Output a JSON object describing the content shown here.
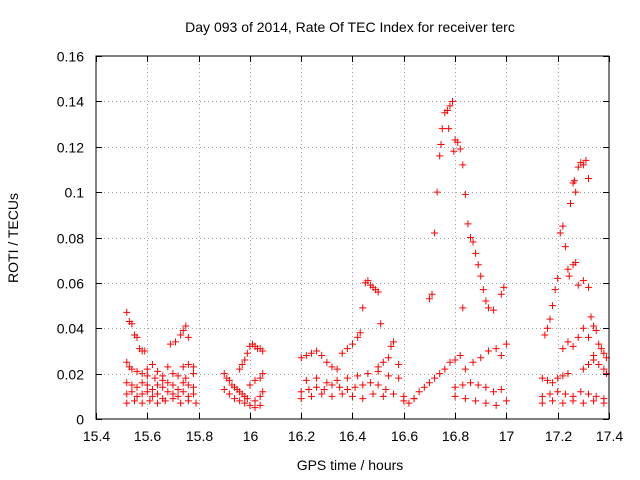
{
  "chart_data": {
    "type": "scatter",
    "title": "Day 093 of 2014, Rate Of TEC Index for receiver terc",
    "xlabel": "GPS time / hours",
    "ylabel": "ROTI / TECUs",
    "xlim": [
      15.4,
      17.4
    ],
    "ylim": [
      0,
      0.16
    ],
    "x_ticks": [
      15.4,
      15.6,
      15.8,
      16,
      16.2,
      16.4,
      16.6,
      16.8,
      17,
      17.2,
      17.4
    ],
    "x_tick_labels": [
      "15.4",
      "15.6",
      "15.8",
      "16",
      "16.2",
      "16.4",
      "16.6",
      "16.8",
      "17",
      "17.2",
      "17.4"
    ],
    "y_ticks": [
      0,
      0.02,
      0.04,
      0.06,
      0.08,
      0.1,
      0.12,
      0.14,
      0.16
    ],
    "y_tick_labels": [
      "0",
      "0.02",
      "0.04",
      "0.06",
      "0.08",
      "0.1",
      "0.12",
      "0.14",
      "0.16"
    ],
    "grid": true,
    "marker": "+",
    "series": [
      {
        "name": "ROTI",
        "color": "#ff0000",
        "points": [
          [
            15.52,
            0.047
          ],
          [
            15.53,
            0.043
          ],
          [
            15.54,
            0.042
          ],
          [
            15.55,
            0.037
          ],
          [
            15.56,
            0.036
          ],
          [
            15.57,
            0.031
          ],
          [
            15.58,
            0.03
          ],
          [
            15.59,
            0.03
          ],
          [
            15.52,
            0.025
          ],
          [
            15.53,
            0.023
          ],
          [
            15.54,
            0.022
          ],
          [
            15.56,
            0.021
          ],
          [
            15.58,
            0.02
          ],
          [
            15.6,
            0.022
          ],
          [
            15.62,
            0.024
          ],
          [
            15.64,
            0.021
          ],
          [
            15.66,
            0.019
          ],
          [
            15.68,
            0.023
          ],
          [
            15.52,
            0.016
          ],
          [
            15.54,
            0.015
          ],
          [
            15.56,
            0.014
          ],
          [
            15.58,
            0.016
          ],
          [
            15.6,
            0.015
          ],
          [
            15.62,
            0.013
          ],
          [
            15.64,
            0.015
          ],
          [
            15.66,
            0.014
          ],
          [
            15.68,
            0.016
          ],
          [
            15.7,
            0.015
          ],
          [
            15.72,
            0.013
          ],
          [
            15.74,
            0.016
          ],
          [
            15.76,
            0.015
          ],
          [
            15.78,
            0.014
          ],
          [
            15.52,
            0.011
          ],
          [
            15.54,
            0.012
          ],
          [
            15.56,
            0.01
          ],
          [
            15.58,
            0.011
          ],
          [
            15.6,
            0.012
          ],
          [
            15.62,
            0.01
          ],
          [
            15.64,
            0.011
          ],
          [
            15.66,
            0.009
          ],
          [
            15.68,
            0.012
          ],
          [
            15.7,
            0.011
          ],
          [
            15.72,
            0.01
          ],
          [
            15.74,
            0.012
          ],
          [
            15.76,
            0.01
          ],
          [
            15.78,
            0.011
          ],
          [
            15.52,
            0.007
          ],
          [
            15.55,
            0.008
          ],
          [
            15.58,
            0.007
          ],
          [
            15.61,
            0.008
          ],
          [
            15.64,
            0.007
          ],
          [
            15.67,
            0.008
          ],
          [
            15.7,
            0.009
          ],
          [
            15.73,
            0.007
          ],
          [
            15.76,
            0.008
          ],
          [
            15.79,
            0.007
          ],
          [
            15.6,
            0.019
          ],
          [
            15.63,
            0.018
          ],
          [
            15.66,
            0.017
          ],
          [
            15.7,
            0.02
          ],
          [
            15.72,
            0.019
          ],
          [
            15.75,
            0.018
          ],
          [
            15.78,
            0.02
          ],
          [
            15.69,
            0.033
          ],
          [
            15.71,
            0.034
          ],
          [
            15.73,
            0.037
          ],
          [
            15.74,
            0.039
          ],
          [
            15.75,
            0.041
          ],
          [
            15.76,
            0.036
          ],
          [
            15.74,
            0.023
          ],
          [
            15.76,
            0.024
          ],
          [
            15.78,
            0.023
          ],
          [
            15.9,
            0.02
          ],
          [
            15.91,
            0.018
          ],
          [
            15.92,
            0.017
          ],
          [
            15.93,
            0.015
          ],
          [
            15.94,
            0.014
          ],
          [
            15.95,
            0.013
          ],
          [
            15.96,
            0.012
          ],
          [
            15.97,
            0.011
          ],
          [
            15.98,
            0.01
          ],
          [
            15.99,
            0.009
          ],
          [
            15.9,
            0.013
          ],
          [
            15.92,
            0.011
          ],
          [
            15.94,
            0.009
          ],
          [
            15.96,
            0.008
          ],
          [
            15.98,
            0.007
          ],
          [
            16.0,
            0.006
          ],
          [
            16.02,
            0.008
          ],
          [
            16.04,
            0.01
          ],
          [
            16.05,
            0.012
          ],
          [
            15.96,
            0.022
          ],
          [
            15.97,
            0.024
          ],
          [
            15.98,
            0.026
          ],
          [
            15.99,
            0.029
          ],
          [
            16.0,
            0.032
          ],
          [
            16.01,
            0.033
          ],
          [
            16.02,
            0.032
          ],
          [
            16.03,
            0.031
          ],
          [
            16.04,
            0.031
          ],
          [
            16.05,
            0.03
          ],
          [
            16.0,
            0.015
          ],
          [
            16.02,
            0.017
          ],
          [
            16.04,
            0.018
          ],
          [
            16.05,
            0.02
          ],
          [
            16.02,
            0.005
          ],
          [
            16.04,
            0.006
          ],
          [
            16.2,
            0.027
          ],
          [
            16.22,
            0.028
          ],
          [
            16.24,
            0.029
          ],
          [
            16.26,
            0.03
          ],
          [
            16.28,
            0.028
          ],
          [
            16.3,
            0.025
          ],
          [
            16.32,
            0.023
          ],
          [
            16.34,
            0.022
          ],
          [
            16.2,
            0.012
          ],
          [
            16.23,
            0.013
          ],
          [
            16.26,
            0.014
          ],
          [
            16.29,
            0.013
          ],
          [
            16.32,
            0.015
          ],
          [
            16.35,
            0.014
          ],
          [
            16.38,
            0.013
          ],
          [
            16.41,
            0.014
          ],
          [
            16.44,
            0.015
          ],
          [
            16.47,
            0.016
          ],
          [
            16.5,
            0.015
          ],
          [
            16.53,
            0.013
          ],
          [
            16.2,
            0.009
          ],
          [
            16.24,
            0.01
          ],
          [
            16.28,
            0.011
          ],
          [
            16.32,
            0.01
          ],
          [
            16.36,
            0.011
          ],
          [
            16.4,
            0.01
          ],
          [
            16.44,
            0.009
          ],
          [
            16.48,
            0.011
          ],
          [
            16.52,
            0.01
          ],
          [
            16.56,
            0.011
          ],
          [
            16.6,
            0.01
          ],
          [
            16.64,
            0.009
          ],
          [
            16.22,
            0.017
          ],
          [
            16.26,
            0.018
          ],
          [
            16.3,
            0.016
          ],
          [
            16.34,
            0.017
          ],
          [
            16.38,
            0.018
          ],
          [
            16.42,
            0.019
          ],
          [
            16.46,
            0.02
          ],
          [
            16.5,
            0.021
          ],
          [
            16.54,
            0.019
          ],
          [
            16.58,
            0.018
          ],
          [
            16.36,
            0.029
          ],
          [
            16.38,
            0.031
          ],
          [
            16.4,
            0.033
          ],
          [
            16.42,
            0.036
          ],
          [
            16.43,
            0.038
          ],
          [
            16.44,
            0.049
          ],
          [
            16.45,
            0.06
          ],
          [
            16.46,
            0.061
          ],
          [
            16.47,
            0.059
          ],
          [
            16.48,
            0.058
          ],
          [
            16.49,
            0.057
          ],
          [
            16.5,
            0.056
          ],
          [
            16.51,
            0.042
          ],
          [
            16.5,
            0.023
          ],
          [
            16.52,
            0.025
          ],
          [
            16.54,
            0.027
          ],
          [
            16.55,
            0.032
          ],
          [
            16.56,
            0.034
          ],
          [
            16.58,
            0.024
          ],
          [
            16.6,
            0.008
          ],
          [
            16.62,
            0.007
          ],
          [
            16.64,
            0.009
          ],
          [
            16.66,
            0.012
          ],
          [
            16.68,
            0.014
          ],
          [
            16.7,
            0.016
          ],
          [
            16.72,
            0.018
          ],
          [
            16.74,
            0.02
          ],
          [
            16.76,
            0.022
          ],
          [
            16.78,
            0.025
          ],
          [
            16.8,
            0.026
          ],
          [
            16.82,
            0.028
          ],
          [
            16.7,
            0.053
          ],
          [
            16.71,
            0.055
          ],
          [
            16.72,
            0.082
          ],
          [
            16.73,
            0.1
          ],
          [
            16.74,
            0.116
          ],
          [
            16.745,
            0.121
          ],
          [
            16.75,
            0.128
          ],
          [
            16.76,
            0.135
          ],
          [
            16.77,
            0.136
          ],
          [
            16.775,
            0.128
          ],
          [
            16.78,
            0.138
          ],
          [
            16.79,
            0.14
          ],
          [
            16.795,
            0.118
          ],
          [
            16.8,
            0.123
          ],
          [
            16.81,
            0.122
          ],
          [
            16.82,
            0.119
          ],
          [
            16.83,
            0.112
          ],
          [
            16.84,
            0.099
          ],
          [
            16.85,
            0.086
          ],
          [
            16.86,
            0.08
          ],
          [
            16.87,
            0.078
          ],
          [
            16.88,
            0.073
          ],
          [
            16.89,
            0.068
          ],
          [
            16.9,
            0.063
          ],
          [
            16.91,
            0.057
          ],
          [
            16.92,
            0.052
          ],
          [
            16.93,
            0.049
          ],
          [
            16.95,
            0.048
          ],
          [
            16.98,
            0.055
          ],
          [
            16.99,
            0.058
          ],
          [
            16.83,
            0.049
          ],
          [
            16.8,
            0.014
          ],
          [
            16.83,
            0.015
          ],
          [
            16.86,
            0.016
          ],
          [
            16.89,
            0.015
          ],
          [
            16.92,
            0.014
          ],
          [
            16.95,
            0.012
          ],
          [
            16.98,
            0.013
          ],
          [
            16.8,
            0.01
          ],
          [
            16.84,
            0.009
          ],
          [
            16.88,
            0.008
          ],
          [
            16.92,
            0.007
          ],
          [
            16.96,
            0.006
          ],
          [
            17.0,
            0.008
          ],
          [
            16.84,
            0.022
          ],
          [
            16.87,
            0.025
          ],
          [
            16.9,
            0.027
          ],
          [
            16.93,
            0.03
          ],
          [
            16.96,
            0.031
          ],
          [
            16.98,
            0.028
          ],
          [
            17.0,
            0.033
          ],
          [
            17.14,
            0.018
          ],
          [
            17.16,
            0.017
          ],
          [
            17.18,
            0.016
          ],
          [
            17.2,
            0.018
          ],
          [
            17.22,
            0.019
          ],
          [
            17.24,
            0.02
          ],
          [
            17.14,
            0.01
          ],
          [
            17.17,
            0.011
          ],
          [
            17.2,
            0.012
          ],
          [
            17.23,
            0.011
          ],
          [
            17.26,
            0.01
          ],
          [
            17.29,
            0.012
          ],
          [
            17.32,
            0.011
          ],
          [
            17.35,
            0.01
          ],
          [
            17.38,
            0.009
          ],
          [
            17.14,
            0.007
          ],
          [
            17.18,
            0.008
          ],
          [
            17.22,
            0.007
          ],
          [
            17.26,
            0.008
          ],
          [
            17.3,
            0.007
          ],
          [
            17.34,
            0.008
          ],
          [
            17.38,
            0.007
          ],
          [
            17.15,
            0.037
          ],
          [
            17.16,
            0.04
          ],
          [
            17.17,
            0.044
          ],
          [
            17.18,
            0.05
          ],
          [
            17.19,
            0.057
          ],
          [
            17.2,
            0.062
          ],
          [
            17.21,
            0.082
          ],
          [
            17.22,
            0.085
          ],
          [
            17.23,
            0.076
          ],
          [
            17.24,
            0.066
          ],
          [
            17.245,
            0.063
          ],
          [
            17.25,
            0.095
          ],
          [
            17.26,
            0.104
          ],
          [
            17.265,
            0.105
          ],
          [
            17.27,
            0.1
          ],
          [
            17.28,
            0.111
          ],
          [
            17.29,
            0.113
          ],
          [
            17.3,
            0.112
          ],
          [
            17.31,
            0.114
          ],
          [
            17.32,
            0.106
          ],
          [
            17.26,
            0.068
          ],
          [
            17.27,
            0.069
          ],
          [
            17.28,
            0.059
          ],
          [
            17.3,
            0.061
          ],
          [
            17.32,
            0.058
          ],
          [
            17.33,
            0.045
          ],
          [
            17.34,
            0.041
          ],
          [
            17.35,
            0.039
          ],
          [
            17.36,
            0.033
          ],
          [
            17.37,
            0.031
          ],
          [
            17.38,
            0.029
          ],
          [
            17.39,
            0.027
          ],
          [
            17.22,
            0.031
          ],
          [
            17.24,
            0.034
          ],
          [
            17.26,
            0.032
          ],
          [
            17.28,
            0.036
          ],
          [
            17.3,
            0.04
          ],
          [
            17.32,
            0.036
          ],
          [
            17.34,
            0.028
          ],
          [
            17.3,
            0.022
          ],
          [
            17.32,
            0.024
          ],
          [
            17.34,
            0.026
          ],
          [
            17.36,
            0.024
          ],
          [
            17.38,
            0.022
          ],
          [
            17.39,
            0.02
          ]
        ]
      }
    ]
  }
}
